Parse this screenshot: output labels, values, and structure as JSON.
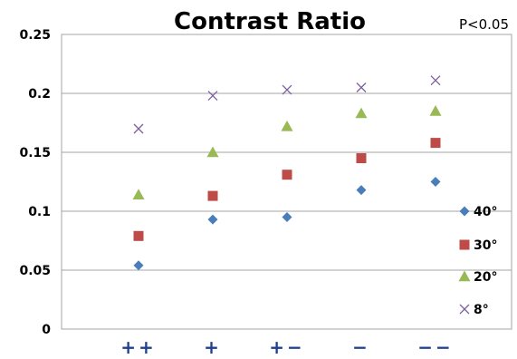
{
  "chart_data": {
    "type": "scatter",
    "title": "Contrast Ratio",
    "annotation": "P<0.05",
    "categories": [
      "++",
      "+",
      "+−",
      "−",
      "−−"
    ],
    "ylim": [
      0,
      0.25
    ],
    "yticks": [
      "0",
      "0.05",
      "0.1",
      "0.15",
      "0.2",
      "0.25"
    ],
    "grid": true,
    "legend_position": "right",
    "series": [
      {
        "name": "40°",
        "marker": "diamond",
        "color": "#4a7ebb",
        "values": [
          0.054,
          0.093,
          0.095,
          0.118,
          0.125
        ]
      },
      {
        "name": "30°",
        "marker": "square",
        "color": "#be4b48",
        "values": [
          0.079,
          0.113,
          0.131,
          0.145,
          0.158
        ]
      },
      {
        "name": "20°",
        "marker": "triangle",
        "color": "#98b954",
        "values": [
          0.114,
          0.15,
          0.172,
          0.183,
          0.185
        ]
      },
      {
        "name": "8°",
        "marker": "x",
        "color": "#7d60a0",
        "values": [
          0.17,
          0.198,
          0.203,
          0.205,
          0.211
        ]
      }
    ]
  }
}
